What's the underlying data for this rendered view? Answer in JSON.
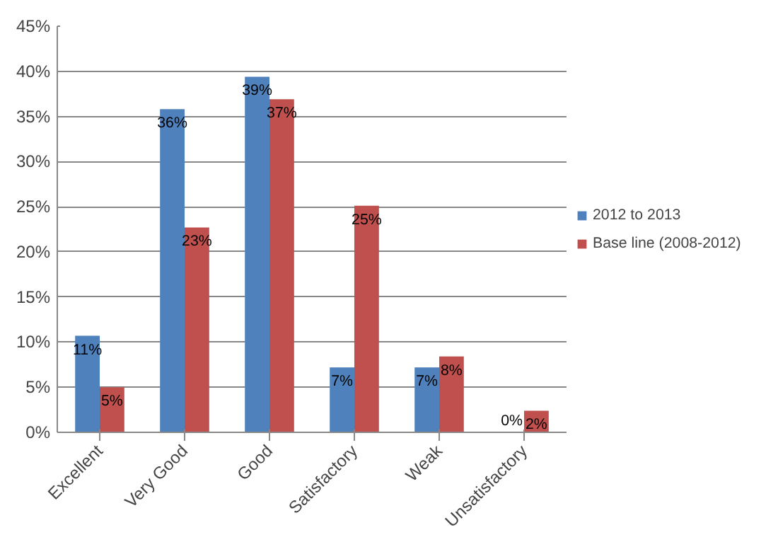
{
  "chart_data": {
    "type": "bar",
    "categories": [
      "Excellent",
      "Very Good",
      "Good",
      "Satisfactory",
      "Weak",
      "Unsatisfactory"
    ],
    "series": [
      {
        "name": "2012 to 2013",
        "color": "#4f81bd",
        "values": [
          10.7,
          35.8,
          39.4,
          7.2,
          7.2,
          0
        ],
        "value_labels": [
          "11%",
          "36%",
          "39%",
          "7%",
          "7%",
          "0%"
        ]
      },
      {
        "name": "Base line (2008-2012)",
        "color": "#c0504d",
        "values": [
          5.0,
          22.7,
          36.9,
          25.1,
          8.4,
          2.4
        ],
        "value_labels": [
          "5%",
          "23%",
          "37%",
          "25%",
          "8%",
          "2%"
        ]
      }
    ],
    "ylim": [
      0,
      45
    ],
    "yticks": [
      {
        "value": 0,
        "label": "0%"
      },
      {
        "value": 5,
        "label": "5%"
      },
      {
        "value": 10,
        "label": "10%"
      },
      {
        "value": 15,
        "label": "15%"
      },
      {
        "value": 20,
        "label": "20%"
      },
      {
        "value": 25,
        "label": "25%"
      },
      {
        "value": 30,
        "label": "30%"
      },
      {
        "value": 35,
        "label": "35%"
      },
      {
        "value": 40,
        "label": "40%"
      },
      {
        "value": 45,
        "label": "45%"
      }
    ],
    "grid": "y",
    "legend": "right"
  }
}
